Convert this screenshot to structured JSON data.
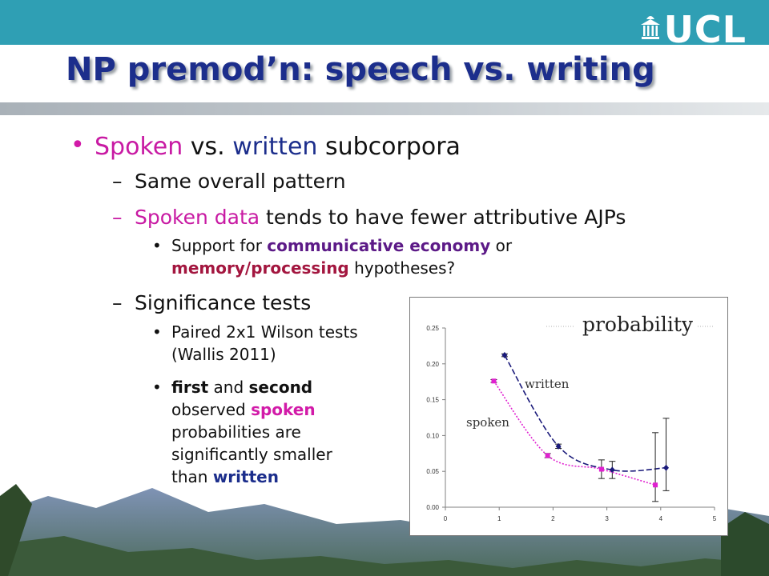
{
  "slide": {
    "title": "NP premod’n: speech vs. writing",
    "logo_text": "UCL"
  },
  "bullets": {
    "l1_bullet": "•",
    "l1_spoken": "Spoken",
    "l1_vs": " vs. ",
    "l1_written": "written",
    "l1_rest": " subcorpora",
    "dash": "–",
    "sub1": "Same overall pattern",
    "sub2_spoken": "Spoken data",
    "sub2_rest": " tends to have fewer attributive AJPs",
    "b1_pre": "Support for ",
    "b1_comm": "communicative economy",
    "b1_or": " or",
    "b1_mem": "memory/processing",
    "b1_post": " hypotheses?",
    "sub3": "Significance tests",
    "b2_line1": "Paired 2x1 Wilson tests",
    "b2_line2": "(Wallis 2011)",
    "b3_first": "first",
    "b3_and": " and ",
    "b3_second": "second",
    "b3_observed": "observed ",
    "b3_spoken": "spoken",
    "b3_line3": "probabilities are",
    "b3_line4": "significantly smaller",
    "b3_than": "than ",
    "b3_written": "written",
    "sub_bullet": "•"
  },
  "colors": {
    "spoken": "#e020d0",
    "written": "#1a1a7a",
    "title": "#1c2e8c",
    "topbar": "#2f9fb4"
  },
  "chart_data": {
    "type": "line",
    "title": "probability",
    "xlabel": "",
    "ylabel": "",
    "xlim": [
      0,
      5
    ],
    "ylim": [
      0,
      0.25
    ],
    "xticks": [
      "0",
      "1",
      "2",
      "3",
      "4",
      "5"
    ],
    "yticks": [
      "0.00",
      "0.05",
      "0.10",
      "0.15",
      "0.20",
      "0.25"
    ],
    "grid": false,
    "legend": "none",
    "series": [
      {
        "name": "written",
        "color": "#1a1a7a",
        "marker": "diamond",
        "x": [
          1.1,
          2.1,
          3.1,
          4.1
        ],
        "y": [
          0.212,
          0.085,
          0.052,
          0.055
        ],
        "err_low": [
          0.21,
          0.082,
          0.04,
          0.023
        ],
        "err_high": [
          0.214,
          0.088,
          0.064,
          0.124
        ]
      },
      {
        "name": "spoken",
        "color": "#e020d0",
        "marker": "square",
        "x": [
          0.9,
          1.9,
          2.9,
          3.9
        ],
        "y": [
          0.176,
          0.072,
          0.053,
          0.031
        ],
        "err_low": [
          0.174,
          0.069,
          0.04,
          0.008
        ],
        "err_high": [
          0.178,
          0.075,
          0.066,
          0.104
        ]
      }
    ]
  }
}
